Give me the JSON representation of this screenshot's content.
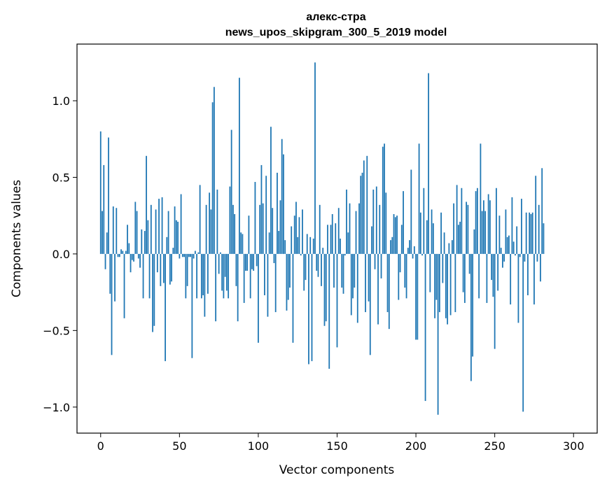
{
  "chart_data": {
    "type": "bar",
    "title_line1": "алекс-стра",
    "title_line2": "news_upos_skipgram_300_5_2019 model",
    "xlabel": "Vector components",
    "ylabel": "Components values",
    "xlim": [
      -15,
      315
    ],
    "ylim": [
      -1.17,
      1.37
    ],
    "xticks": [
      0,
      50,
      100,
      150,
      200,
      250,
      300
    ],
    "xtick_labels": [
      "0",
      "50",
      "100",
      "150",
      "200",
      "250",
      "300"
    ],
    "yticks": [
      -1.0,
      -0.5,
      0.0,
      0.5,
      1.0
    ],
    "ytick_labels": [
      "−1.0",
      "−0.5",
      "0.0",
      "0.5",
      "1.0"
    ],
    "bar_color": "#1f77b4",
    "grid": false,
    "values": [
      0.8,
      0.28,
      0.58,
      -0.1,
      0.14,
      0.76,
      -0.26,
      -0.66,
      0.31,
      -0.31,
      0.3,
      -0.02,
      -0.02,
      0.03,
      0.02,
      -0.42,
      0.02,
      0.19,
      0.07,
      -0.12,
      -0.04,
      -0.05,
      0.34,
      0.28,
      -0.03,
      -0.09,
      0.16,
      -0.29,
      0.15,
      0.64,
      0.22,
      -0.29,
      0.32,
      -0.51,
      -0.47,
      0.29,
      -0.12,
      0.36,
      -0.21,
      0.37,
      -0.19,
      -0.7,
      0.11,
      0.28,
      -0.2,
      -0.18,
      0.04,
      0.31,
      0.22,
      0.21,
      -0.03,
      0.39,
      -0.02,
      -0.02,
      -0.29,
      -0.21,
      -0.02,
      -0.02,
      -0.68,
      -0.03,
      0.02,
      -0.29,
      0.01,
      0.45,
      -0.29,
      -0.27,
      -0.41,
      0.32,
      -0.26,
      0.4,
      0.29,
      0.99,
      1.09,
      -0.44,
      0.42,
      -0.13,
      0.01,
      -0.24,
      -0.29,
      -0.15,
      -0.24,
      -0.29,
      0.44,
      0.81,
      0.32,
      0.26,
      -0.21,
      -0.44,
      1.15,
      0.14,
      0.13,
      -0.32,
      -0.11,
      -0.11,
      0.25,
      -0.29,
      -0.1,
      -0.11,
      0.47,
      -0.08,
      -0.58,
      0.32,
      0.58,
      0.33,
      -0.27,
      0.51,
      -0.41,
      0.14,
      0.83,
      0.3,
      -0.06,
      -0.38,
      0.53,
      0.15,
      0.35,
      0.75,
      0.65,
      0.09,
      -0.37,
      -0.3,
      -0.22,
      0.18,
      -0.58,
      0.25,
      0.34,
      0.11,
      0.24,
      -0.01,
      0.29,
      -0.24,
      -0.17,
      0.13,
      -0.72,
      0.11,
      -0.7,
      0.1,
      1.25,
      -0.11,
      -0.15,
      0.32,
      -0.21,
      0.04,
      -0.47,
      -0.44,
      0.19,
      -0.75,
      0.19,
      0.26,
      -0.22,
      0.2,
      -0.61,
      0.3,
      0.1,
      -0.22,
      -0.26,
      -0.01,
      0.42,
      0.14,
      0.33,
      -0.4,
      -0.29,
      -0.22,
      0.28,
      -0.45,
      0.33,
      0.51,
      0.53,
      0.61,
      -0.38,
      0.64,
      -0.31,
      -0.66,
      0.18,
      0.42,
      -0.1,
      0.44,
      -0.46,
      0.32,
      -0.16,
      0.7,
      0.72,
      0.4,
      -0.38,
      -0.49,
      0.09,
      0.11,
      0.26,
      0.24,
      0.25,
      -0.3,
      -0.12,
      0.19,
      0.41,
      -0.22,
      -0.29,
      0.04,
      0.09,
      0.55,
      -0.03,
      0.05,
      -0.56,
      -0.56,
      0.72,
      0.27,
      -0.01,
      0.43,
      -0.96,
      0.22,
      1.18,
      -0.25,
      0.29,
      0.2,
      -0.42,
      -0.3,
      -1.05,
      -0.38,
      0.27,
      -0.19,
      0.14,
      -0.42,
      -0.46,
      0.07,
      -0.4,
      0.09,
      0.33,
      -0.38,
      0.45,
      0.19,
      0.21,
      0.43,
      -0.25,
      -0.32,
      0.34,
      0.32,
      -0.13,
      -0.83,
      -0.67,
      0.16,
      0.41,
      0.43,
      -0.29,
      0.72,
      0.28,
      0.35,
      0.28,
      -0.32,
      0.39,
      0.35,
      -0.17,
      -0.28,
      -0.62,
      0.43,
      -0.24,
      0.25,
      0.04,
      -0.09,
      -0.05,
      0.29,
      0.11,
      0.12,
      -0.33,
      0.37,
      0.08,
      -0.01,
      0.18,
      -0.45,
      -0.02,
      0.36,
      -1.03,
      -0.05,
      0.27,
      -0.27,
      0.27,
      0.26,
      0.27,
      -0.33,
      0.51,
      -0.05,
      0.32,
      -0.18,
      0.56,
      0.2
    ]
  }
}
